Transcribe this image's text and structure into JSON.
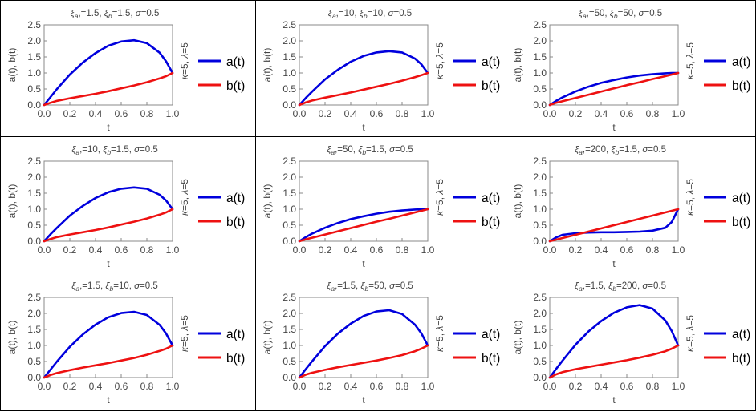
{
  "legend": {
    "a_label": "a(t)",
    "b_label": "b(t)",
    "a_color": "#0000dd",
    "b_color": "#ee1111"
  },
  "axis_color": "#888888",
  "chart_data": [
    {
      "type": "line",
      "title": "ξₐ,=1.5, ξᵦ=1.5, σ=0.5",
      "title_parts": {
        "xi_a": "1.5",
        "xi_b": "1.5",
        "sigma": "0.5"
      },
      "xlabel": "t",
      "ylabel": "a(t), b(t)",
      "right_label": "κ=5, λ=5",
      "xlim": [
        0,
        1
      ],
      "ylim": [
        0,
        2.5
      ],
      "xticks": [
        "0.0",
        "0.2",
        "0.4",
        "0.6",
        "0.8",
        "1.0"
      ],
      "yticks": [
        "0.0",
        "0.5",
        "1.0",
        "1.5",
        "2.0",
        "2.5"
      ],
      "x": [
        0,
        0.05,
        0.1,
        0.2,
        0.3,
        0.4,
        0.5,
        0.6,
        0.7,
        0.8,
        0.9,
        0.95,
        1.0
      ],
      "series": [
        {
          "name": "a(t)",
          "values": [
            0.0,
            0.25,
            0.5,
            0.95,
            1.32,
            1.62,
            1.85,
            1.98,
            2.02,
            1.93,
            1.63,
            1.36,
            1.0
          ]
        },
        {
          "name": "b(t)",
          "values": [
            0.0,
            0.07,
            0.13,
            0.21,
            0.28,
            0.35,
            0.43,
            0.52,
            0.61,
            0.71,
            0.83,
            0.9,
            1.0
          ]
        }
      ]
    },
    {
      "type": "line",
      "title": "ξₐ,=10, ξᵦ=10, σ=0.5",
      "title_parts": {
        "xi_a": "10",
        "xi_b": "10",
        "sigma": "0.5"
      },
      "xlabel": "t",
      "ylabel": "a(t), b(t)",
      "right_label": "κ=5, λ=5",
      "xlim": [
        0,
        1
      ],
      "ylim": [
        0,
        2.5
      ],
      "xticks": [
        "0.0",
        "0.2",
        "0.4",
        "0.6",
        "0.8",
        "1.0"
      ],
      "yticks": [
        "0.0",
        "0.5",
        "1.0",
        "1.5",
        "2.0",
        "2.5"
      ],
      "x": [
        0,
        0.05,
        0.1,
        0.2,
        0.3,
        0.4,
        0.5,
        0.6,
        0.7,
        0.8,
        0.9,
        0.95,
        1.0
      ],
      "series": [
        {
          "name": "a(t)",
          "values": [
            0.0,
            0.22,
            0.42,
            0.8,
            1.1,
            1.35,
            1.53,
            1.64,
            1.68,
            1.64,
            1.45,
            1.27,
            1.0
          ]
        },
        {
          "name": "b(t)",
          "values": [
            0.0,
            0.08,
            0.14,
            0.23,
            0.31,
            0.39,
            0.48,
            0.57,
            0.66,
            0.76,
            0.87,
            0.93,
            1.0
          ]
        }
      ]
    },
    {
      "type": "line",
      "title": "ξₐ,=50, ξᵦ=50, σ=0.5",
      "title_parts": {
        "xi_a": "50",
        "xi_b": "50",
        "sigma": "0.5"
      },
      "xlabel": "t",
      "ylabel": "a(t), b(t)",
      "right_label": "κ=5, λ=5",
      "xlim": [
        0,
        1
      ],
      "ylim": [
        0,
        2.5
      ],
      "xticks": [
        "0.0",
        "0.2",
        "0.4",
        "0.6",
        "0.8",
        "1.0"
      ],
      "yticks": [
        "0.0",
        "0.5",
        "1.0",
        "1.5",
        "2.0",
        "2.5"
      ],
      "x": [
        0,
        0.05,
        0.1,
        0.2,
        0.3,
        0.4,
        0.5,
        0.6,
        0.7,
        0.8,
        0.9,
        0.95,
        1.0
      ],
      "series": [
        {
          "name": "a(t)",
          "values": [
            0.0,
            0.13,
            0.24,
            0.42,
            0.57,
            0.69,
            0.78,
            0.86,
            0.92,
            0.96,
            0.99,
            1.0,
            1.0
          ]
        },
        {
          "name": "b(t)",
          "values": [
            0.0,
            0.07,
            0.12,
            0.22,
            0.32,
            0.42,
            0.52,
            0.62,
            0.71,
            0.81,
            0.9,
            0.95,
            1.0
          ]
        }
      ]
    },
    {
      "type": "line",
      "title": "ξₐ,=10, ξᵦ=1.5, σ=0.5",
      "title_parts": {
        "xi_a": "10",
        "xi_b": "1.5",
        "sigma": "0.5"
      },
      "xlabel": "t",
      "ylabel": "a(t), b(t)",
      "right_label": "κ=5, λ=5",
      "xlim": [
        0,
        1
      ],
      "ylim": [
        0,
        2.5
      ],
      "xticks": [
        "0.0",
        "0.2",
        "0.4",
        "0.6",
        "0.8",
        "1.0"
      ],
      "yticks": [
        "0.0",
        "0.5",
        "1.0",
        "1.5",
        "2.0",
        "2.5"
      ],
      "x": [
        0,
        0.05,
        0.1,
        0.2,
        0.3,
        0.4,
        0.5,
        0.6,
        0.7,
        0.8,
        0.9,
        0.95,
        1.0
      ],
      "series": [
        {
          "name": "a(t)",
          "values": [
            0.0,
            0.22,
            0.42,
            0.8,
            1.1,
            1.35,
            1.53,
            1.64,
            1.68,
            1.64,
            1.45,
            1.27,
            1.0
          ]
        },
        {
          "name": "b(t)",
          "values": [
            0.0,
            0.07,
            0.13,
            0.21,
            0.28,
            0.35,
            0.43,
            0.52,
            0.61,
            0.71,
            0.83,
            0.9,
            1.0
          ]
        }
      ]
    },
    {
      "type": "line",
      "title": "ξₐ,=50, ξᵦ=1.5, σ=0.5",
      "title_parts": {
        "xi_a": "50",
        "xi_b": "1.5",
        "sigma": "0.5"
      },
      "xlabel": "t",
      "ylabel": "a(t), b(t)",
      "right_label": "κ=5, λ=5",
      "xlim": [
        0,
        1
      ],
      "ylim": [
        0,
        2.5
      ],
      "xticks": [
        "0.0",
        "0.2",
        "0.4",
        "0.6",
        "0.8",
        "1.0"
      ],
      "yticks": [
        "0.0",
        "0.5",
        "1.0",
        "1.5",
        "2.0",
        "2.5"
      ],
      "x": [
        0,
        0.05,
        0.1,
        0.2,
        0.3,
        0.4,
        0.5,
        0.6,
        0.7,
        0.8,
        0.9,
        0.95,
        1.0
      ],
      "series": [
        {
          "name": "a(t)",
          "values": [
            0.0,
            0.13,
            0.24,
            0.42,
            0.57,
            0.69,
            0.78,
            0.86,
            0.92,
            0.96,
            0.99,
            1.0,
            1.0
          ]
        },
        {
          "name": "b(t)",
          "values": [
            0.0,
            0.06,
            0.11,
            0.21,
            0.31,
            0.41,
            0.51,
            0.61,
            0.7,
            0.8,
            0.9,
            0.95,
            1.0
          ]
        }
      ]
    },
    {
      "type": "line",
      "title": "ξₐ,=200, ξᵦ=1.5, σ=0.5",
      "title_parts": {
        "xi_a": "200",
        "xi_b": "1.5",
        "sigma": "0.5"
      },
      "xlabel": "t",
      "ylabel": "a(t), b(t)",
      "right_label": "κ=5, λ=5",
      "xlim": [
        0,
        1
      ],
      "ylim": [
        0,
        2.5
      ],
      "xticks": [
        "0.0",
        "0.2",
        "0.4",
        "0.6",
        "0.8",
        "1.0"
      ],
      "yticks": [
        "0.0",
        "0.5",
        "1.0",
        "1.5",
        "2.0",
        "2.5"
      ],
      "x": [
        0,
        0.05,
        0.1,
        0.2,
        0.3,
        0.4,
        0.5,
        0.6,
        0.7,
        0.8,
        0.9,
        0.95,
        1.0
      ],
      "series": [
        {
          "name": "a(t)",
          "values": [
            0.0,
            0.12,
            0.2,
            0.25,
            0.27,
            0.28,
            0.28,
            0.29,
            0.3,
            0.33,
            0.42,
            0.6,
            1.0
          ]
        },
        {
          "name": "b(t)",
          "values": [
            0.0,
            0.05,
            0.1,
            0.2,
            0.3,
            0.4,
            0.5,
            0.6,
            0.7,
            0.8,
            0.9,
            0.95,
            1.0
          ]
        }
      ]
    },
    {
      "type": "line",
      "title": "ξₐ,=1.5, ξᵦ=10, σ=0.5",
      "title_parts": {
        "xi_a": "1.5",
        "xi_b": "10",
        "sigma": "0.5"
      },
      "xlabel": "t",
      "ylabel": "a(t), b(t)",
      "right_label": "κ=5, λ=5",
      "xlim": [
        0,
        1
      ],
      "ylim": [
        0,
        2.5
      ],
      "xticks": [
        "0.0",
        "0.2",
        "0.4",
        "0.6",
        "0.8",
        "1.0"
      ],
      "yticks": [
        "0.0",
        "0.5",
        "1.0",
        "1.5",
        "2.0",
        "2.5"
      ],
      "x": [
        0,
        0.05,
        0.1,
        0.2,
        0.3,
        0.4,
        0.5,
        0.6,
        0.7,
        0.8,
        0.9,
        0.95,
        1.0
      ],
      "series": [
        {
          "name": "a(t)",
          "values": [
            0.0,
            0.25,
            0.5,
            0.96,
            1.34,
            1.65,
            1.88,
            2.01,
            2.05,
            1.95,
            1.64,
            1.37,
            1.0
          ]
        },
        {
          "name": "b(t)",
          "values": [
            0.0,
            0.08,
            0.14,
            0.23,
            0.31,
            0.38,
            0.45,
            0.53,
            0.61,
            0.71,
            0.83,
            0.9,
            1.0
          ]
        }
      ]
    },
    {
      "type": "line",
      "title": "ξₐ,=1.5, ξᵦ=50, σ=0.5",
      "title_parts": {
        "xi_a": "1.5",
        "xi_b": "50",
        "sigma": "0.5"
      },
      "xlabel": "t",
      "ylabel": "a(t), b(t)",
      "right_label": "κ=5, λ=5",
      "xlim": [
        0,
        1
      ],
      "ylim": [
        0,
        2.5
      ],
      "xticks": [
        "0.0",
        "0.2",
        "0.4",
        "0.6",
        "0.8",
        "1.0"
      ],
      "yticks": [
        "0.0",
        "0.5",
        "1.0",
        "1.5",
        "2.0",
        "2.5"
      ],
      "x": [
        0,
        0.05,
        0.1,
        0.2,
        0.3,
        0.4,
        0.5,
        0.6,
        0.7,
        0.8,
        0.9,
        0.95,
        1.0
      ],
      "series": [
        {
          "name": "a(t)",
          "values": [
            0.0,
            0.26,
            0.51,
            0.98,
            1.37,
            1.68,
            1.92,
            2.06,
            2.1,
            1.98,
            1.65,
            1.38,
            1.0
          ]
        },
        {
          "name": "b(t)",
          "values": [
            0.0,
            0.09,
            0.15,
            0.24,
            0.32,
            0.39,
            0.46,
            0.53,
            0.61,
            0.7,
            0.82,
            0.9,
            1.0
          ]
        }
      ]
    },
    {
      "type": "line",
      "title": "ξₐ,=1.5, ξᵦ=200, σ=0.5",
      "title_parts": {
        "xi_a": "1.5",
        "xi_b": "200",
        "sigma": "0.5"
      },
      "xlabel": "t",
      "ylabel": "a(t), b(t)",
      "right_label": "κ=5, λ=5",
      "xlim": [
        0,
        1
      ],
      "ylim": [
        0,
        2.5
      ],
      "xticks": [
        "0.0",
        "0.2",
        "0.4",
        "0.6",
        "0.8",
        "1.0"
      ],
      "yticks": [
        "0.0",
        "0.5",
        "1.0",
        "1.5",
        "2.0",
        "2.5"
      ],
      "x": [
        0,
        0.05,
        0.1,
        0.2,
        0.3,
        0.4,
        0.5,
        0.6,
        0.7,
        0.8,
        0.9,
        0.95,
        1.0
      ],
      "series": [
        {
          "name": "a(t)",
          "values": [
            0.0,
            0.27,
            0.53,
            1.02,
            1.43,
            1.76,
            2.02,
            2.19,
            2.26,
            2.15,
            1.78,
            1.45,
            1.0
          ]
        },
        {
          "name": "b(t)",
          "values": [
            0.0,
            0.1,
            0.17,
            0.26,
            0.33,
            0.4,
            0.47,
            0.54,
            0.62,
            0.71,
            0.82,
            0.9,
            1.0
          ]
        }
      ]
    }
  ]
}
